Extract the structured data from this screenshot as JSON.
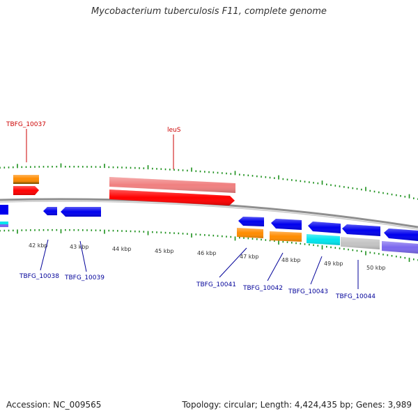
{
  "title": "Mycobacterium tuberculosis F11, complete genome",
  "footer": {
    "accession": "Accession: NC_009565",
    "summary": "Topology: circular; Length: 4,424,435 bp; Genes: 3,989"
  },
  "colors": {
    "backbone": "#8f8f8f",
    "ticks": "#1a8f1a",
    "gene_label_outer": "#cc0000",
    "gene_label_inner": "#000099",
    "orange": "#ff8c00",
    "red": "#ff0000",
    "pink": "#f08080",
    "blue": "#0000ee",
    "cyan": "#00e5ee",
    "gray": "#c4c4c4",
    "slate": "#7b68ee"
  },
  "scale_labels": [
    "42 kbp",
    "43 kbp",
    "44 kbp",
    "45 kbp",
    "46 kbp",
    "47 kbp",
    "48 kbp",
    "49 kbp",
    "50 kbp"
  ],
  "gene_labels": {
    "outer": [
      "TBFG_10037",
      "leuS"
    ],
    "inner": [
      "TBFG_10038",
      "TBFG_10039",
      "TBFG_10041",
      "TBFG_10042",
      "TBFG_10043",
      "TBFG_10044"
    ]
  }
}
